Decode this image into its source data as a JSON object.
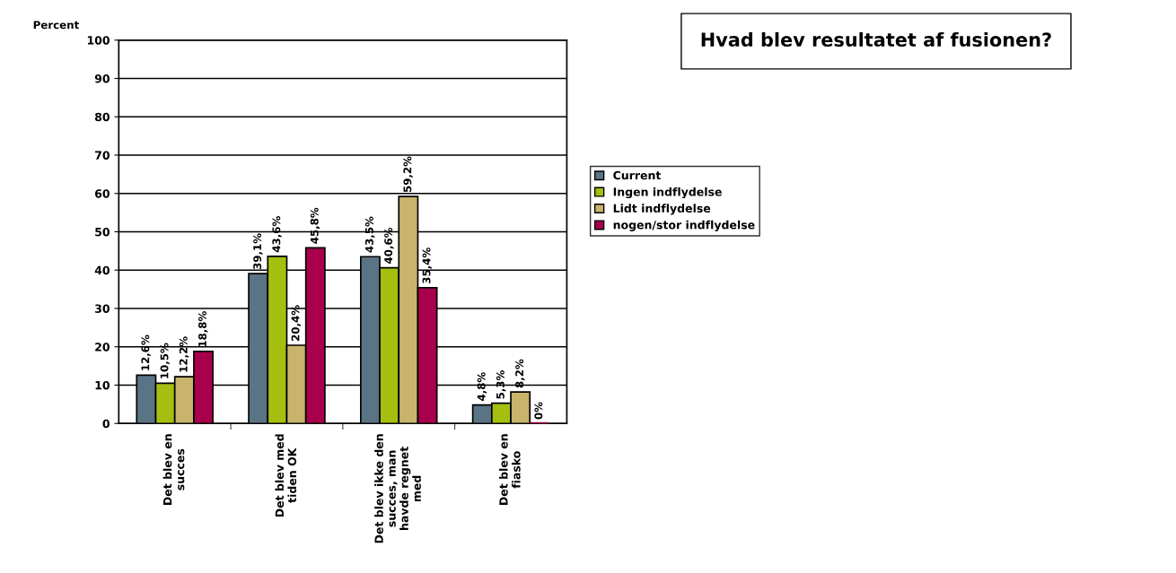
{
  "chart_data": {
    "type": "bar",
    "title": "Hvad blev resultatet af fusionen?",
    "ylabel": "Percent",
    "categories": [
      "Det blev en\nsucces",
      "Det blev med\ntiden OK",
      "Det blev ikke den\nsucces, man\nhavde regnet\nmed",
      "Det blev en\nfiasko"
    ],
    "series": [
      {
        "name": "Current",
        "color": "#5a7385",
        "values": [
          12.6,
          39.1,
          43.5,
          4.8
        ],
        "value_labels": [
          "12,6%",
          "39,1%",
          "43,5%",
          "4,8%"
        ]
      },
      {
        "name": "Ingen indflydelse",
        "color": "#a4bf10",
        "values": [
          10.5,
          43.6,
          40.6,
          5.3
        ],
        "value_labels": [
          "10,5%",
          "43,6%",
          "40,6%",
          "5,3%"
        ]
      },
      {
        "name": "Lidt indflydelse",
        "color": "#c8b46a",
        "values": [
          12.2,
          20.4,
          59.2,
          8.2
        ],
        "value_labels": [
          "12,2%",
          "20,4%",
          "59,2%",
          "8,2%"
        ]
      },
      {
        "name": "nogen/stor indflydelse",
        "color": "#a8004c",
        "values": [
          18.8,
          45.8,
          35.4,
          0
        ],
        "value_labels": [
          "18,8%",
          "45,8%",
          "35,4%",
          "0%"
        ]
      }
    ],
    "ylim": [
      0,
      100
    ],
    "yticks": [
      0,
      10,
      20,
      30,
      40,
      50,
      60,
      70,
      80,
      90,
      100
    ],
    "grid": "y",
    "legend": "right"
  }
}
